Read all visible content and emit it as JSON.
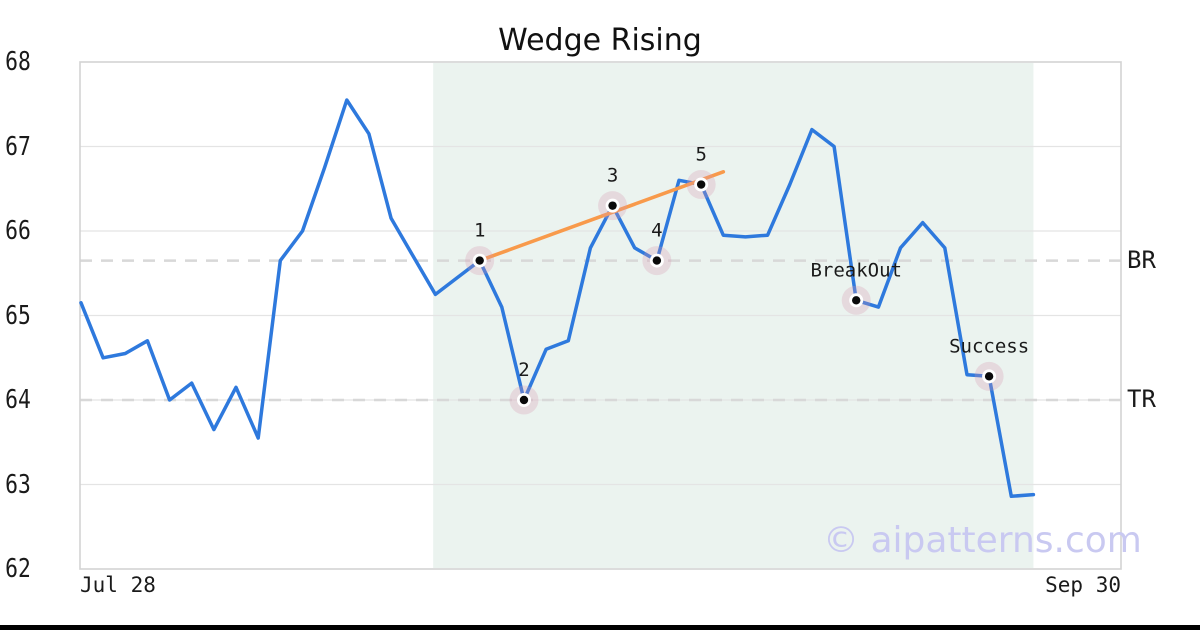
{
  "title": "Wedge Rising",
  "watermark_text": "© aipatterns.com",
  "chart_data": {
    "type": "line",
    "title": "Wedge Rising",
    "xlabel": "",
    "ylabel": "",
    "x_axis": {
      "start_label": "Jul 28",
      "end_label": "Sep 30",
      "total_slots": 47
    },
    "y_axis": {
      "min": 62,
      "max": 68,
      "ticks": [
        68,
        67,
        66,
        65,
        64,
        63,
        62
      ]
    },
    "grid": true,
    "values": [
      65.15,
      64.5,
      64.55,
      64.7,
      64.0,
      64.2,
      63.65,
      64.15,
      63.55,
      65.65,
      66.0,
      66.75,
      67.55,
      67.15,
      66.15,
      65.7,
      65.25,
      65.45,
      65.65,
      65.1,
      64.0,
      64.6,
      64.7,
      65.8,
      66.3,
      65.8,
      65.65,
      66.6,
      66.55,
      65.95,
      65.93,
      65.95,
      66.55,
      67.2,
      67.0,
      65.18,
      65.1,
      65.8,
      66.1,
      65.8,
      64.3,
      64.28,
      62.86,
      62.88
    ],
    "markers": [
      {
        "index": 18,
        "label": "1",
        "value": 65.65
      },
      {
        "index": 20,
        "label": "2",
        "value": 64.0
      },
      {
        "index": 24,
        "label": "3",
        "value": 66.3
      },
      {
        "index": 26,
        "label": "4",
        "value": 65.65
      },
      {
        "index": 28,
        "label": "5",
        "value": 66.55
      },
      {
        "index": 35,
        "label": "BreakOut",
        "value": 65.18
      },
      {
        "index": 41,
        "label": "Success",
        "value": 64.28
      }
    ],
    "levels": [
      {
        "label": "BR",
        "value": 65.65
      },
      {
        "label": "TR",
        "value": 64.0
      }
    ],
    "trendline": {
      "from_index": 18,
      "from_value": 65.65,
      "to_index": 29,
      "to_value": 66.7
    },
    "pattern_region": {
      "from_index": 15.9,
      "to_index": 43
    },
    "legend": "none",
    "colors": {
      "line": "#2e79dd",
      "trendline": "#f89a4b",
      "pattern_shade": "#ebf3ef",
      "marker_halo": "#d898b0",
      "marker_dot": "#0a0a0a",
      "gridline": "#e4e4e4",
      "dashed_level": "#d8d8d8",
      "plot_border": "#d3d3d3",
      "text": "#1a1a1a",
      "watermark": "#c9c9f1"
    }
  }
}
